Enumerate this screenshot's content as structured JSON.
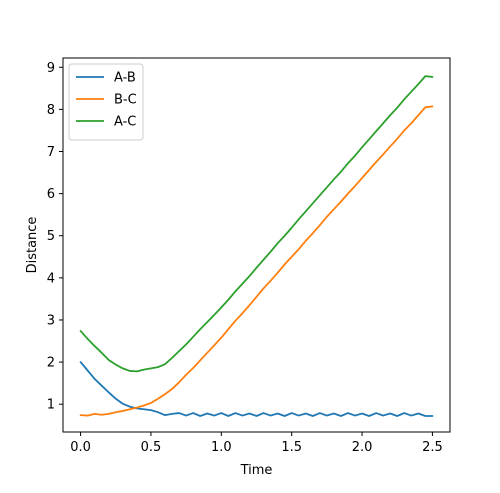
{
  "chart_data": {
    "type": "line",
    "title": "",
    "xlabel": "Time",
    "ylabel": "Distance",
    "xlim": [
      -0.125,
      2.625
    ],
    "ylim": [
      0.34,
      9.22
    ],
    "xticks": [
      0.0,
      0.5,
      1.0,
      1.5,
      2.0,
      2.5
    ],
    "xtick_labels": [
      "0.0",
      "0.5",
      "1.0",
      "1.5",
      "2.0",
      "2.5"
    ],
    "yticks": [
      1,
      2,
      3,
      4,
      5,
      6,
      7,
      8,
      9
    ],
    "ytick_labels": [
      "1",
      "2",
      "3",
      "4",
      "5",
      "6",
      "7",
      "8",
      "9"
    ],
    "grid": false,
    "legend_position": "upper-left",
    "x": [
      0.0,
      0.05,
      0.1,
      0.15,
      0.2,
      0.25,
      0.3,
      0.35,
      0.4,
      0.45,
      0.5,
      0.55,
      0.6,
      0.65,
      0.7,
      0.75,
      0.8,
      0.85,
      0.9,
      0.95,
      1.0,
      1.05,
      1.1,
      1.15,
      1.2,
      1.25,
      1.3,
      1.35,
      1.4,
      1.45,
      1.5,
      1.55,
      1.6,
      1.65,
      1.7,
      1.75,
      1.8,
      1.85,
      1.9,
      1.95,
      2.0,
      2.05,
      2.1,
      2.15,
      2.2,
      2.25,
      2.3,
      2.35,
      2.4,
      2.45,
      2.5
    ],
    "series": [
      {
        "name": "A-B",
        "color": "#1f77b4",
        "values": [
          2.0,
          1.8,
          1.6,
          1.44,
          1.28,
          1.13,
          1.01,
          0.94,
          0.9,
          0.88,
          0.86,
          0.81,
          0.74,
          0.77,
          0.79,
          0.73,
          0.79,
          0.72,
          0.78,
          0.73,
          0.79,
          0.72,
          0.79,
          0.73,
          0.78,
          0.72,
          0.79,
          0.73,
          0.78,
          0.72,
          0.79,
          0.73,
          0.78,
          0.72,
          0.79,
          0.73,
          0.78,
          0.72,
          0.79,
          0.73,
          0.78,
          0.72,
          0.79,
          0.73,
          0.78,
          0.72,
          0.79,
          0.73,
          0.78,
          0.72,
          0.72
        ]
      },
      {
        "name": "B-C",
        "color": "#ff7f0e",
        "values": [
          0.74,
          0.73,
          0.77,
          0.75,
          0.77,
          0.81,
          0.84,
          0.88,
          0.92,
          0.97,
          1.03,
          1.13,
          1.24,
          1.36,
          1.52,
          1.7,
          1.86,
          2.04,
          2.22,
          2.4,
          2.58,
          2.78,
          2.98,
          3.16,
          3.35,
          3.55,
          3.75,
          3.93,
          4.12,
          4.32,
          4.5,
          4.68,
          4.88,
          5.06,
          5.25,
          5.45,
          5.63,
          5.81,
          6.0,
          6.18,
          6.37,
          6.56,
          6.75,
          6.93,
          7.12,
          7.3,
          7.5,
          7.67,
          7.86,
          8.05,
          8.07
        ]
      },
      {
        "name": "A-C",
        "color": "#2ca02c",
        "values": [
          2.74,
          2.55,
          2.38,
          2.22,
          2.05,
          1.94,
          1.85,
          1.79,
          1.78,
          1.82,
          1.85,
          1.88,
          1.95,
          2.1,
          2.26,
          2.42,
          2.6,
          2.78,
          2.95,
          3.12,
          3.3,
          3.48,
          3.68,
          3.86,
          4.04,
          4.24,
          4.43,
          4.62,
          4.82,
          5.0,
          5.19,
          5.39,
          5.58,
          5.77,
          5.96,
          6.15,
          6.34,
          6.52,
          6.72,
          6.9,
          7.1,
          7.29,
          7.48,
          7.67,
          7.86,
          8.04,
          8.24,
          8.42,
          8.6,
          8.79,
          8.77
        ]
      }
    ]
  }
}
